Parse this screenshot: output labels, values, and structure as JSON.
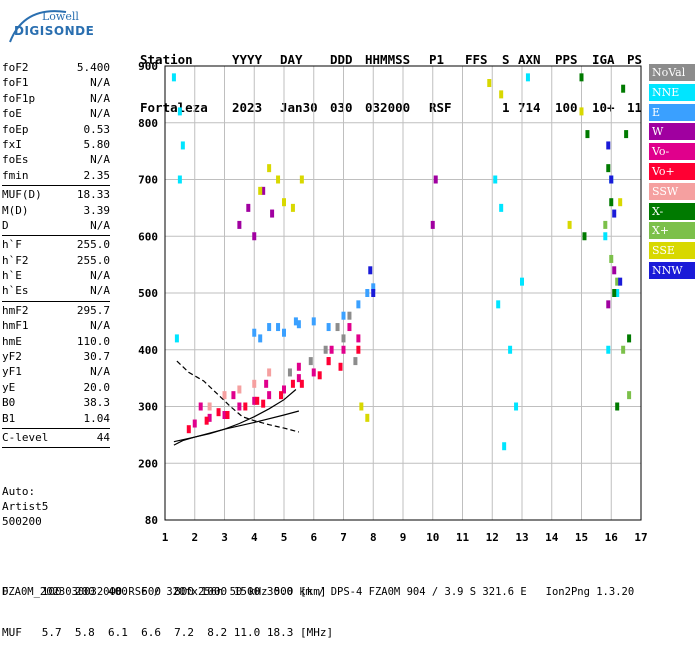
{
  "logo": {
    "top": "Lowell",
    "bottom": "DIGISONDE"
  },
  "header": {
    "labels": [
      "Station",
      "YYYY",
      "DAY",
      "DDD",
      "HHMMSS",
      "P1",
      "FFS",
      "S",
      "AXN",
      "PPS",
      "IGA",
      "PS"
    ],
    "values": [
      "Fortaleza",
      "2023",
      "Jan30",
      "030",
      "032000",
      "RSF",
      "1",
      "714",
      "100",
      "10+",
      "11"
    ]
  },
  "params": [
    {
      "name": "foF2",
      "value": "5.400"
    },
    {
      "name": "foF1",
      "value": "N/A"
    },
    {
      "name": "foF1p",
      "value": "N/A"
    },
    {
      "name": "foE",
      "value": "N/A"
    },
    {
      "name": "foEp",
      "value": "0.53"
    },
    {
      "name": "fxI",
      "value": "5.80"
    },
    {
      "name": "foEs",
      "value": "N/A"
    },
    {
      "name": "fmin",
      "value": "2.35"
    },
    {
      "name": "MUF(D)",
      "value": "18.33"
    },
    {
      "name": "M(D)",
      "value": "3.39"
    },
    {
      "name": "D",
      "value": "N/A"
    },
    {
      "name": "h`F",
      "value": "255.0"
    },
    {
      "name": "h`F2",
      "value": "255.0"
    },
    {
      "name": "h`E",
      "value": "N/A"
    },
    {
      "name": "h`Es",
      "value": "N/A"
    },
    {
      "name": "hmF2",
      "value": "295.7"
    },
    {
      "name": "hmF1",
      "value": "N/A"
    },
    {
      "name": "hmE",
      "value": "110.0"
    },
    {
      "name": "yF2",
      "value": "30.7"
    },
    {
      "name": "yF1",
      "value": "N/A"
    },
    {
      "name": "yE",
      "value": "20.0"
    },
    {
      "name": "B0",
      "value": "38.3"
    },
    {
      "name": "B1",
      "value": "1.04"
    },
    {
      "name": "C-level",
      "value": "44"
    }
  ],
  "auto": {
    "line1": "Auto:",
    "line2": "Artist5",
    "line3": "500200"
  },
  "legend": [
    {
      "label": "NoVal",
      "color": "#8c8c8c"
    },
    {
      "label": "NNE",
      "color": "#00e5ff"
    },
    {
      "label": "E",
      "color": "#3aa0ff"
    },
    {
      "label": "W",
      "color": "#a000a0"
    },
    {
      "label": "Vo-",
      "color": "#e0008c"
    },
    {
      "label": "Vo+",
      "color": "#ff0033"
    },
    {
      "label": "SSW",
      "color": "#f5a0a0"
    },
    {
      "label": "X-",
      "color": "#007a00"
    },
    {
      "label": "X+",
      "color": "#7cc04a"
    },
    {
      "label": "SSE",
      "color": "#d8d800"
    },
    {
      "label": "NNW",
      "color": "#1a1ad8"
    }
  ],
  "bottom": {
    "d_row": "D     100  200  400  600  800 1000 1500 3000 [km]",
    "muf_row": "MUF   5.7  5.8  6.1  6.6  7.2  8.2 11.0 18.3 [MHz]",
    "footer": "FZA0M_2023030032000.RSF / 320fx256h 50 kHz 5.0 km / DPS-4 FZA0M 904 / 3.9 S 321.6 E   Ion2Png 1.3.20"
  },
  "chart_data": {
    "type": "scatter",
    "x_ticks": [
      "1",
      "2",
      "3",
      "4",
      "5",
      "6",
      "7",
      "8",
      "9",
      "10",
      "11",
      "12",
      "13",
      "14",
      "15",
      "16",
      "17"
    ],
    "y_ticks": [
      "80",
      "200",
      "300",
      "400",
      "500",
      "600",
      "700",
      "800",
      "900"
    ],
    "xlim": [
      1,
      17
    ],
    "ylim": [
      80,
      900
    ],
    "trace": {
      "x": [
        1.3,
        1.6,
        2.0,
        2.5,
        3.0,
        3.5,
        4.0,
        4.5,
        5.0,
        5.4
      ],
      "y": [
        232,
        240,
        246,
        252,
        260,
        270,
        282,
        296,
        312,
        330
      ]
    },
    "profile_curve": {
      "x": [
        1.4,
        1.8,
        2.3,
        2.8,
        3.2,
        3.6,
        4.0,
        4.5,
        5.0,
        5.5
      ],
      "y": [
        380,
        360,
        345,
        320,
        300,
        282,
        275,
        268,
        262,
        255
      ]
    },
    "profile_lower": {
      "x": [
        1.3,
        2.0,
        3.0,
        4.0,
        5.0,
        5.5
      ],
      "y": [
        238,
        246,
        260,
        272,
        285,
        292
      ]
    },
    "clusters": [
      {
        "color": "#e0008c",
        "x": [
          2.0,
          2.5,
          3.0,
          3.5,
          4.0,
          4.5,
          5.0,
          5.5,
          6.0,
          6.5,
          7.0,
          7.5,
          2.2,
          3.3,
          4.4,
          5.5,
          6.6,
          7.2
        ],
        "y": [
          270,
          280,
          285,
          300,
          310,
          320,
          330,
          350,
          360,
          380,
          400,
          420,
          300,
          320,
          340,
          370,
          400,
          440
        ]
      },
      {
        "color": "#ff0033",
        "x": [
          1.8,
          2.4,
          3.1,
          3.7,
          4.3,
          4.9,
          5.6,
          6.2,
          6.9,
          7.5,
          2.8,
          4.1,
          5.3,
          6.5
        ],
        "y": [
          260,
          275,
          285,
          300,
          305,
          320,
          340,
          355,
          370,
          400,
          290,
          310,
          340,
          380
        ]
      },
      {
        "color": "#3aa0ff",
        "x": [
          4.0,
          4.5,
          5.0,
          5.5,
          6.0,
          6.5,
          7.0,
          7.5,
          7.8,
          8.0,
          4.2,
          4.8,
          5.4
        ],
        "y": [
          430,
          440,
          430,
          445,
          450,
          440,
          460,
          480,
          500,
          510,
          420,
          440,
          450
        ]
      },
      {
        "color": "#00e5ff",
        "x": [
          1.3,
          1.5,
          1.6,
          1.5,
          1.4,
          12.1,
          12.3,
          12.2,
          12.6,
          12.8,
          13.0,
          12.4,
          13.2,
          15.8,
          16.2,
          16.0,
          15.9
        ],
        "y": [
          880,
          820,
          760,
          700,
          420,
          700,
          650,
          480,
          400,
          300,
          520,
          230,
          880,
          600,
          500,
          700,
          400
        ]
      },
      {
        "color": "#a000a0",
        "x": [
          3.5,
          3.8,
          4.0,
          4.3,
          4.6,
          10.0,
          10.1,
          15.9,
          16.1
        ],
        "y": [
          620,
          650,
          600,
          680,
          640,
          620,
          700,
          480,
          540
        ]
      },
      {
        "color": "#d8d800",
        "x": [
          4.2,
          4.5,
          4.8,
          5.0,
          5.3,
          5.6,
          7.6,
          7.8,
          11.9,
          12.3,
          14.6,
          15.0,
          16.3
        ],
        "y": [
          680,
          720,
          700,
          660,
          650,
          700,
          300,
          280,
          870,
          850,
          620,
          820,
          660
        ]
      },
      {
        "color": "#007a00",
        "x": [
          15.0,
          15.2,
          15.1,
          15.9,
          16.0,
          16.1,
          16.4,
          16.5,
          16.6,
          16.2
        ],
        "y": [
          880,
          780,
          600,
          720,
          660,
          500,
          860,
          780,
          420,
          300
        ]
      },
      {
        "color": "#7cc04a",
        "x": [
          16.0,
          16.2,
          16.4,
          16.6,
          15.8
        ],
        "y": [
          560,
          520,
          400,
          320,
          620
        ]
      },
      {
        "color": "#1a1ad8",
        "x": [
          15.9,
          16.0,
          16.1,
          16.3,
          8.0,
          7.9
        ],
        "y": [
          760,
          700,
          640,
          520,
          500,
          540
        ]
      },
      {
        "color": "#8c8c8c",
        "x": [
          7.0,
          7.2,
          7.4,
          6.8,
          6.4,
          5.9,
          5.2
        ],
        "y": [
          420,
          460,
          380,
          440,
          400,
          380,
          360
        ]
      },
      {
        "color": "#f5a0a0",
        "x": [
          2.5,
          3.0,
          3.5,
          4.0,
          4.5
        ],
        "y": [
          300,
          320,
          330,
          340,
          360
        ]
      }
    ]
  }
}
